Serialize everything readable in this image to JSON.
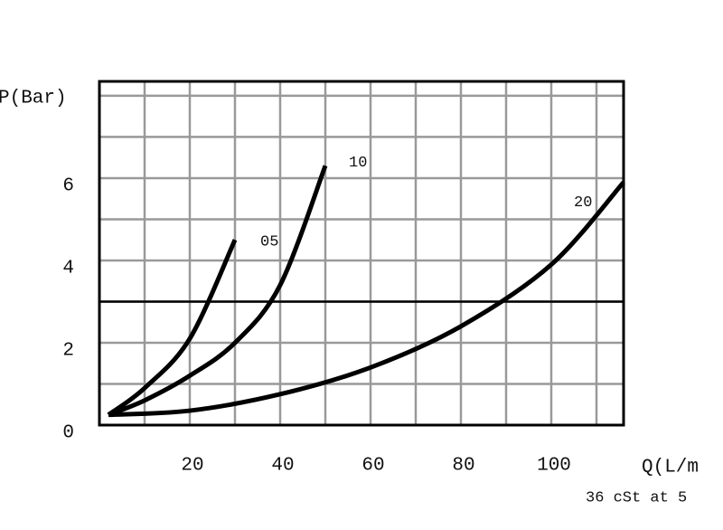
{
  "chart_data": {
    "type": "line",
    "y_label": "P(Bar)",
    "x_label": "Q(L/m",
    "note": "36 cSt at 5",
    "xlim": [
      0,
      116
    ],
    "ylim": [
      0,
      8.35
    ],
    "xticks": [
      20,
      40,
      60,
      80,
      100
    ],
    "yticks": [
      0,
      2,
      4,
      6
    ],
    "minor_xticks": [
      10,
      20,
      30,
      40,
      50,
      60,
      70,
      80,
      90,
      100,
      110
    ],
    "minor_yticks": [
      1,
      2,
      3,
      4,
      5,
      6,
      7,
      8
    ],
    "reference_line": 3,
    "grid": true,
    "series": [
      {
        "name": "05",
        "color": "#000000",
        "x": [
          2,
          10,
          20,
          30
        ],
        "values": [
          0.25,
          0.9,
          2.1,
          4.5
        ]
      },
      {
        "name": "10",
        "color": "#000000",
        "x": [
          2,
          10,
          20,
          30,
          40,
          50
        ],
        "values": [
          0.25,
          0.6,
          1.2,
          2.0,
          3.4,
          6.3
        ]
      },
      {
        "name": "20",
        "color": "#000000",
        "x": [
          2,
          20,
          40,
          60,
          80,
          100,
          116
        ],
        "values": [
          0.25,
          0.35,
          0.75,
          1.4,
          2.4,
          3.9,
          5.9
        ]
      }
    ]
  }
}
